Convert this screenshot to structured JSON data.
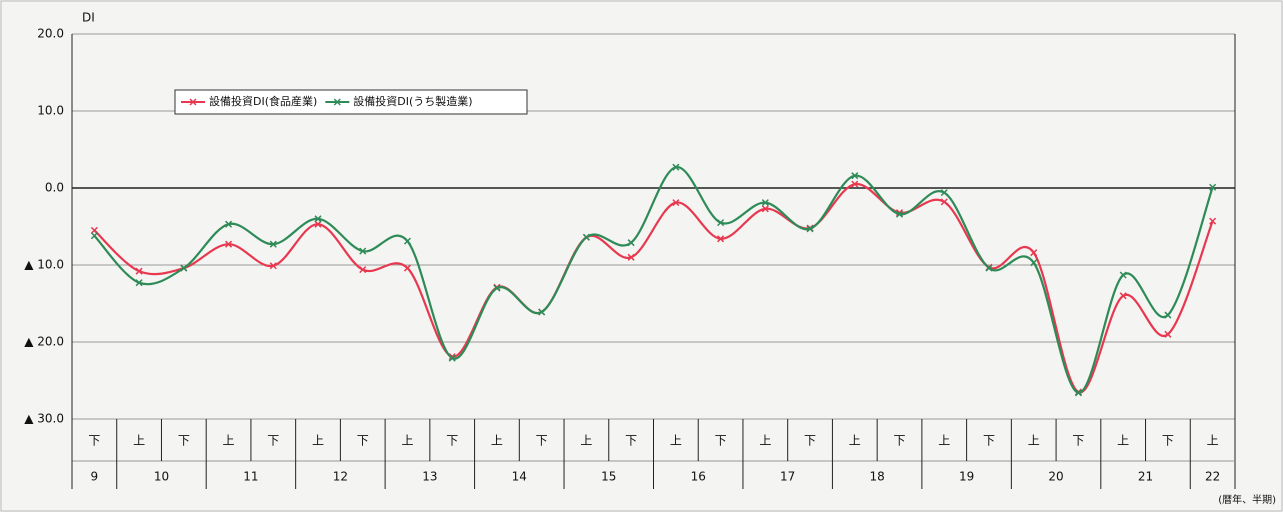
{
  "chart_data": {
    "type": "line",
    "y_axis_label": "DI",
    "x_axis_note": "(暦年、半期)",
    "categories": [
      "下",
      "上",
      "下",
      "上",
      "下",
      "上",
      "下",
      "上",
      "下",
      "上",
      "下",
      "上",
      "下",
      "上",
      "下",
      "上",
      "下",
      "上",
      "下",
      "上",
      "下",
      "上",
      "下",
      "上",
      "下",
      "上"
    ],
    "year_labels": [
      "9",
      "10",
      "11",
      "12",
      "13",
      "14",
      "15",
      "16",
      "17",
      "18",
      "19",
      "20",
      "21",
      "22"
    ],
    "series": [
      {
        "name": "設備投資DI(食品産業)",
        "color": "#e8384f",
        "values": [
          -5.5,
          -10.8,
          -10.4,
          -7.3,
          -10.1,
          -4.7,
          -10.6,
          -10.4,
          -21.9,
          -12.9,
          -16.1,
          -6.4,
          -9.0,
          -1.9,
          -6.6,
          -2.7,
          -5.2,
          0.5,
          -3.2,
          -1.8,
          -10.3,
          -8.4,
          -26.5,
          -14.0,
          -19.0,
          -4.3
        ]
      },
      {
        "name": "設備投資DI(うち製造業)",
        "color": "#2e8b57",
        "values": [
          -6.2,
          -12.3,
          -10.4,
          -4.7,
          -7.3,
          -4.0,
          -8.2,
          -6.9,
          -22.1,
          -13.0,
          -16.1,
          -6.4,
          -7.1,
          2.7,
          -4.5,
          -1.9,
          -5.3,
          1.6,
          -3.4,
          -0.6,
          -10.4,
          -9.7,
          -26.6,
          -11.3,
          -16.5,
          0.1
        ]
      }
    ],
    "ylim": [
      -30,
      20
    ],
    "yticks": [
      {
        "value": 20,
        "label": "20.0"
      },
      {
        "value": 10,
        "label": "10.0"
      },
      {
        "value": 0,
        "label": "0.0"
      },
      {
        "value": -10,
        "label": "▲ 10.0"
      },
      {
        "value": -20,
        "label": "▲ 20.0"
      },
      {
        "value": -30,
        "label": "▲ 30.0"
      }
    ],
    "grid": true
  }
}
